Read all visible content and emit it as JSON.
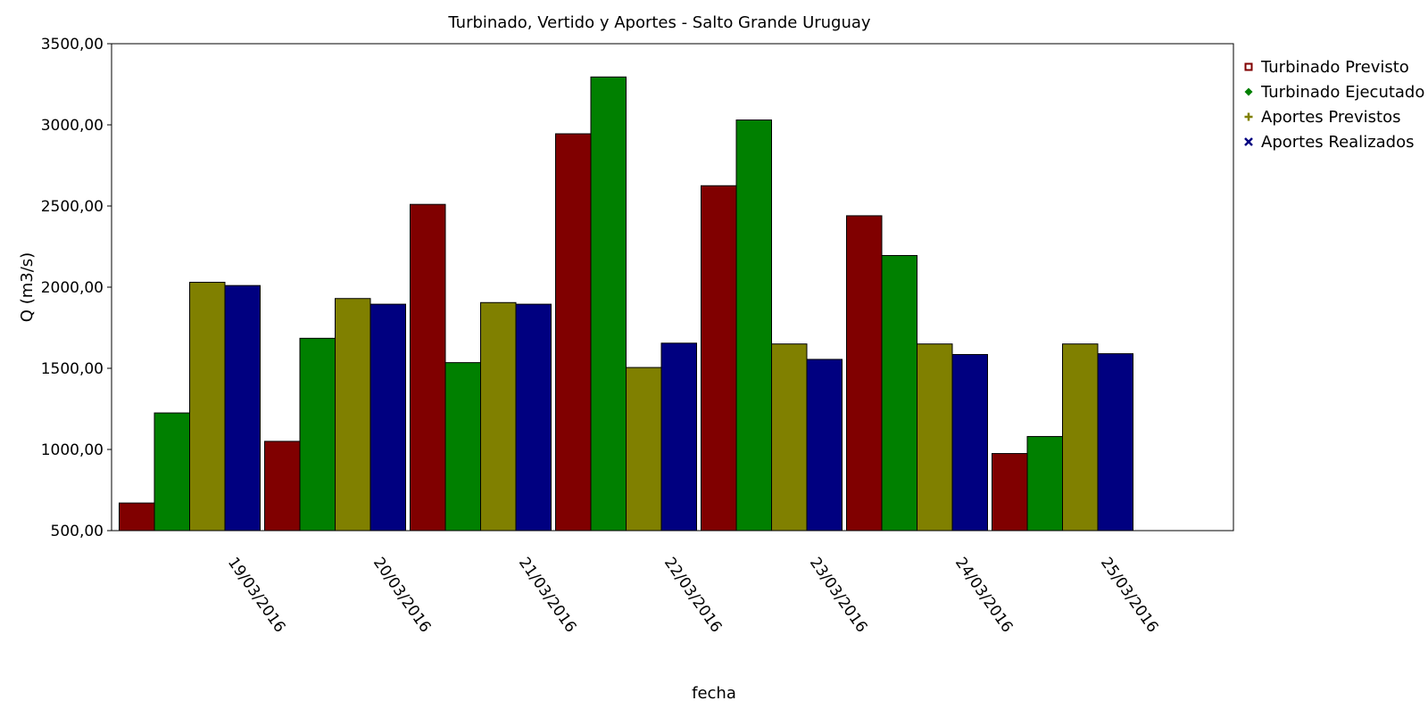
{
  "chart_data": {
    "type": "bar",
    "title": "Turbinado, Vertido y Aportes - Salto Grande Uruguay",
    "xlabel": "fecha",
    "ylabel": "Q (m3/s)",
    "ylim": [
      500,
      3500
    ],
    "yticks": [
      "500,00",
      "1000,00",
      "1500,00",
      "2000,00",
      "2500,00",
      "3000,00",
      "3500,00"
    ],
    "categories": [
      "19/03/2016",
      "20/03/2016",
      "21/03/2016",
      "22/03/2016",
      "23/03/2016",
      "24/03/2016",
      "25/03/2016"
    ],
    "legend_position": "right",
    "grid": false,
    "series": [
      {
        "name": "Turbinado Previsto",
        "color": "#800000",
        "marker": "square",
        "values": [
          670,
          1050,
          2510,
          2945,
          2625,
          2440,
          975
        ]
      },
      {
        "name": "Turbinado Ejecutado",
        "color": "#008000",
        "marker": "diamond",
        "values": [
          1225,
          1685,
          1535,
          3295,
          3030,
          2195,
          1080
        ]
      },
      {
        "name": "Aportes Previstos",
        "color": "#808000",
        "marker": "plus",
        "values": [
          2030,
          1930,
          1905,
          1505,
          1650,
          1650,
          1650
        ]
      },
      {
        "name": "Aportes Realizados",
        "color": "#000080",
        "marker": "cross",
        "values": [
          2010,
          1895,
          1895,
          1655,
          1555,
          1585,
          1590
        ]
      }
    ]
  }
}
